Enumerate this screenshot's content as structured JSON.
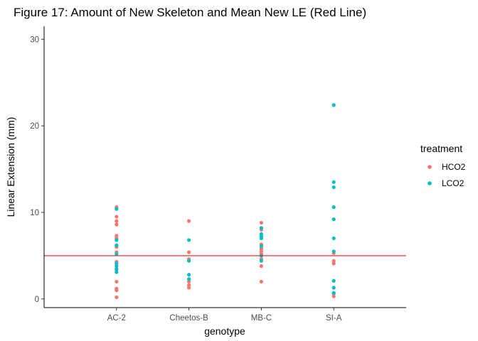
{
  "chart_data": {
    "type": "scatter",
    "title": "Figure 17: Amount of New Skeleton and Mean New LE (Red Line)",
    "xlabel": "genotype",
    "ylabel": "Linear Extension (mm)",
    "categories": [
      "AC-2",
      "Cheetos-B",
      "MB-C",
      "SI-A"
    ],
    "ylim": [
      -1.0,
      31.5
    ],
    "yticks": [
      0,
      10,
      20,
      30
    ],
    "grid": false,
    "legend": {
      "title": "treatment",
      "placement": "right",
      "entries": [
        "HCO2",
        "LCO2"
      ]
    },
    "reference_line": {
      "y": 5.0,
      "color": "#E41A1C"
    },
    "series": [
      {
        "name": "HCO2",
        "color": "#F8766D",
        "points": [
          {
            "x": "AC-2",
            "y": 10.6
          },
          {
            "x": "AC-2",
            "y": 9.5
          },
          {
            "x": "AC-2",
            "y": 9.0
          },
          {
            "x": "AC-2",
            "y": 8.6
          },
          {
            "x": "AC-2",
            "y": 7.3
          },
          {
            "x": "AC-2",
            "y": 7.0
          },
          {
            "x": "AC-2",
            "y": 6.0
          },
          {
            "x": "AC-2",
            "y": 5.4
          },
          {
            "x": "AC-2",
            "y": 4.3
          },
          {
            "x": "AC-2",
            "y": 3.5
          },
          {
            "x": "AC-2",
            "y": 2.0
          },
          {
            "x": "AC-2",
            "y": 1.2
          },
          {
            "x": "AC-2",
            "y": 1.0
          },
          {
            "x": "AC-2",
            "y": 0.2
          },
          {
            "x": "Cheetos-B",
            "y": 9.0
          },
          {
            "x": "Cheetos-B",
            "y": 5.4
          },
          {
            "x": "Cheetos-B",
            "y": 4.6
          },
          {
            "x": "Cheetos-B",
            "y": 2.0
          },
          {
            "x": "Cheetos-B",
            "y": 1.6
          },
          {
            "x": "Cheetos-B",
            "y": 1.3
          },
          {
            "x": "MB-C",
            "y": 8.8
          },
          {
            "x": "MB-C",
            "y": 8.0
          },
          {
            "x": "MB-C",
            "y": 6.3
          },
          {
            "x": "MB-C",
            "y": 5.8
          },
          {
            "x": "MB-C",
            "y": 5.5
          },
          {
            "x": "MB-C",
            "y": 5.2
          },
          {
            "x": "MB-C",
            "y": 4.6
          },
          {
            "x": "MB-C",
            "y": 3.8
          },
          {
            "x": "MB-C",
            "y": 2.0
          },
          {
            "x": "SI-A",
            "y": 5.3
          },
          {
            "x": "SI-A",
            "y": 4.4
          },
          {
            "x": "SI-A",
            "y": 4.1
          },
          {
            "x": "SI-A",
            "y": 0.6
          },
          {
            "x": "SI-A",
            "y": 0.3
          }
        ]
      },
      {
        "name": "LCO2",
        "color": "#00BFC4",
        "points": [
          {
            "x": "AC-2",
            "y": 10.4
          },
          {
            "x": "AC-2",
            "y": 6.8
          },
          {
            "x": "AC-2",
            "y": 6.2
          },
          {
            "x": "AC-2",
            "y": 5.2
          },
          {
            "x": "AC-2",
            "y": 4.1
          },
          {
            "x": "AC-2",
            "y": 3.8
          },
          {
            "x": "AC-2",
            "y": 3.4
          },
          {
            "x": "AC-2",
            "y": 3.1
          },
          {
            "x": "Cheetos-B",
            "y": 6.8
          },
          {
            "x": "Cheetos-B",
            "y": 4.4
          },
          {
            "x": "Cheetos-B",
            "y": 2.8
          },
          {
            "x": "Cheetos-B",
            "y": 2.3
          },
          {
            "x": "MB-C",
            "y": 8.2
          },
          {
            "x": "MB-C",
            "y": 7.5
          },
          {
            "x": "MB-C",
            "y": 7.2
          },
          {
            "x": "MB-C",
            "y": 7.0
          },
          {
            "x": "MB-C",
            "y": 6.1
          },
          {
            "x": "MB-C",
            "y": 5.0
          },
          {
            "x": "MB-C",
            "y": 4.4
          },
          {
            "x": "SI-A",
            "y": 22.4
          },
          {
            "x": "SI-A",
            "y": 13.5
          },
          {
            "x": "SI-A",
            "y": 12.9
          },
          {
            "x": "SI-A",
            "y": 10.6
          },
          {
            "x": "SI-A",
            "y": 9.2
          },
          {
            "x": "SI-A",
            "y": 7.0
          },
          {
            "x": "SI-A",
            "y": 5.5
          },
          {
            "x": "SI-A",
            "y": 2.1
          },
          {
            "x": "SI-A",
            "y": 1.3
          },
          {
            "x": "SI-A",
            "y": 0.7
          }
        ]
      }
    ]
  }
}
